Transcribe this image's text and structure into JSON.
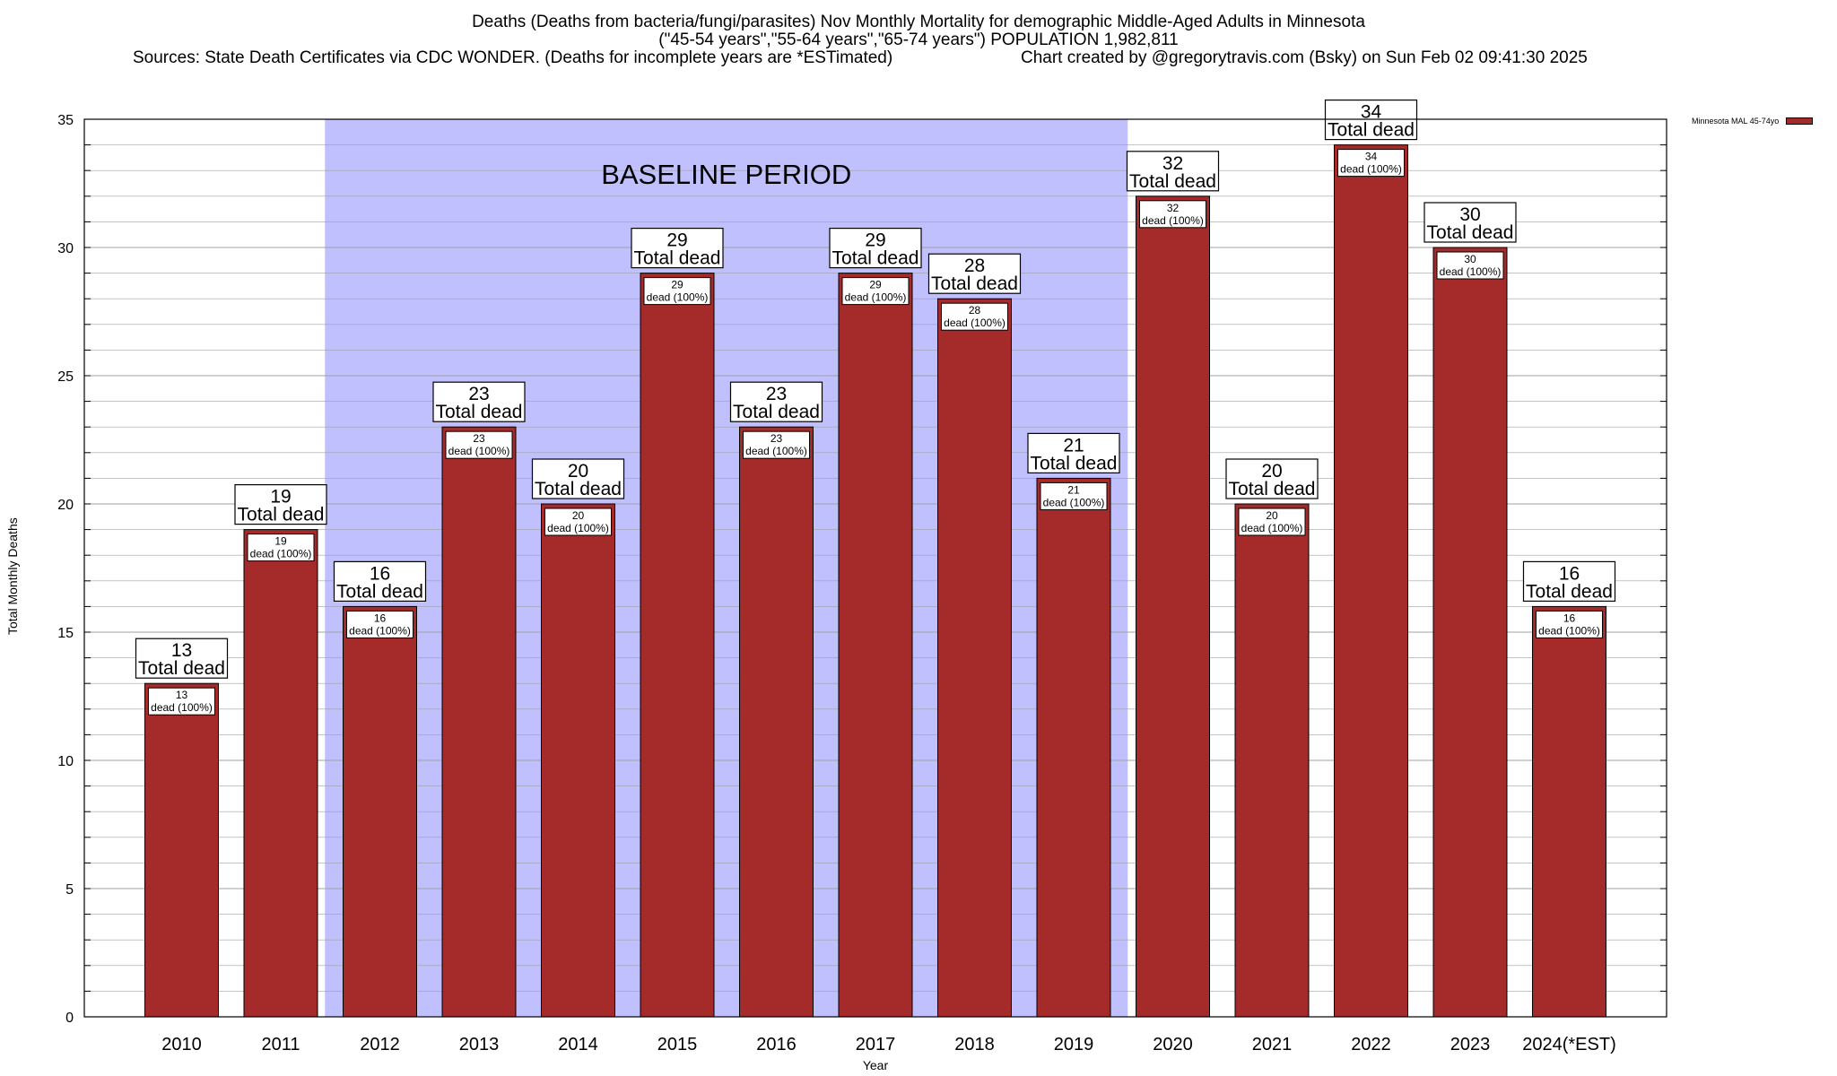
{
  "title": {
    "line1": "Deaths (Deaths from bacteria/fungi/parasites) Nov Monthly Mortality for demographic Middle-Aged Adults in Minnesota",
    "line2": "(\"45-54 years\",\"55-64 years\",\"65-74 years\") POPULATION 1,982,811",
    "sources": "Sources: State Death Certificates via CDC WONDER. (Deaths for incomplete years are *ESTimated)",
    "credit": "Chart created by @gregorytravis.com (Bsky) on Sun Feb 02 09:41:30 2025"
  },
  "chart_data": {
    "type": "bar",
    "categories": [
      "2010",
      "2011",
      "2012",
      "2013",
      "2014",
      "2015",
      "2016",
      "2017",
      "2018",
      "2019",
      "2020",
      "2021",
      "2022",
      "2023",
      "2024(*EST)"
    ],
    "series": [
      {
        "name": "Minnesota MAL 45-74yo",
        "values": [
          13,
          19,
          16,
          23,
          20,
          29,
          23,
          29,
          28,
          21,
          32,
          20,
          34,
          30,
          16
        ]
      }
    ],
    "top_label_suffix": "Total dead",
    "inner_label_suffix": "dead (100%)",
    "xlabel": "Year",
    "ylabel": "Total Monthly Deaths",
    "ylim": [
      0,
      35
    ],
    "yticks": [
      0,
      5,
      10,
      15,
      20,
      25,
      30,
      35
    ],
    "grid": true,
    "legend_position": "top-right",
    "baseline_period": {
      "label": "BASELINE PERIOD",
      "from": "2012",
      "to": "2019"
    },
    "colors": {
      "bar": "#a52a2a",
      "baseline": "#c0c0ff",
      "grid": "#a0a0a0"
    }
  }
}
